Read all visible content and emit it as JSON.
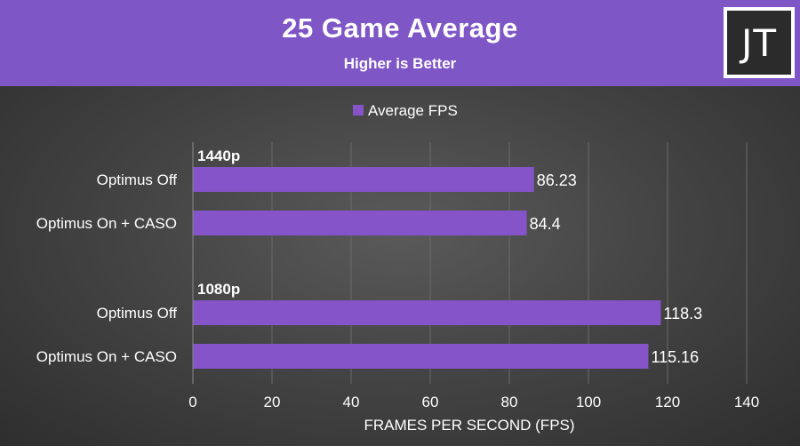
{
  "header": {
    "title": "25 Game Average",
    "subtitle": "Higher is Better",
    "logo": "JT"
  },
  "colors": {
    "header_bg": "#7f56c6",
    "bar": "#8454c8",
    "text": "#ffffff",
    "grid": "#6a6a6a"
  },
  "chart_data": {
    "type": "bar",
    "orientation": "horizontal",
    "legend": {
      "position": "top",
      "entries": [
        "Average FPS"
      ]
    },
    "xlabel": "FRAMES PER SECOND (FPS)",
    "xlim": [
      0,
      140
    ],
    "xticks": [
      "0",
      "20",
      "40",
      "60",
      "80",
      "100",
      "120",
      "140"
    ],
    "grid": true,
    "groups": [
      {
        "name": "1440p",
        "categories": [
          "Optimus Off",
          "Optimus On + CASO"
        ],
        "values": [
          86.23,
          84.4
        ],
        "labels": [
          "86.23",
          "84.4"
        ]
      },
      {
        "name": "1080p",
        "categories": [
          "Optimus Off",
          "Optimus On + CASO"
        ],
        "values": [
          118.3,
          115.16
        ],
        "labels": [
          "118.3",
          "115.16"
        ]
      }
    ],
    "series": [
      {
        "name": "Average FPS",
        "values": [
          86.23,
          84.4,
          118.3,
          115.16
        ]
      }
    ]
  }
}
